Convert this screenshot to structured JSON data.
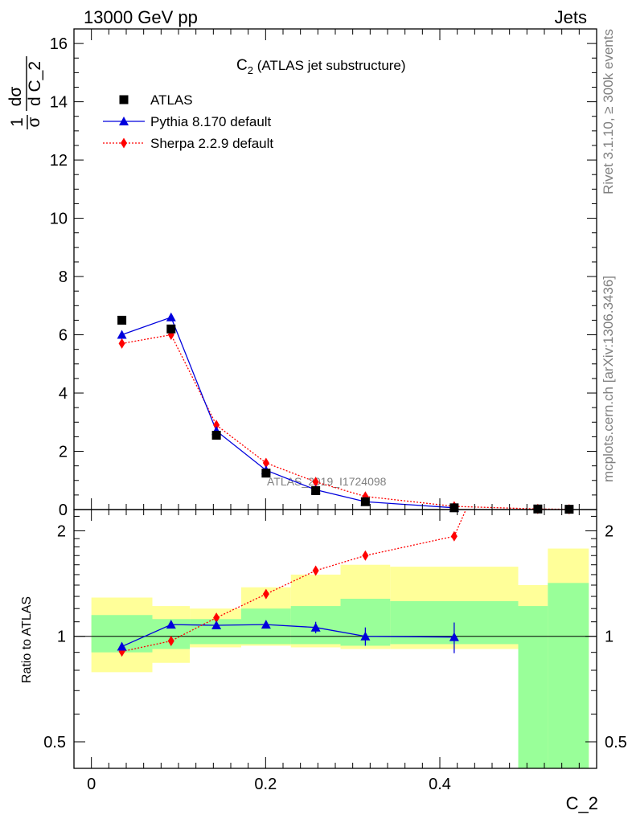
{
  "header": {
    "left": "13000 GeV pp",
    "right": "Jets"
  },
  "side_text": {
    "rivet": "Rivet 3.1.10, ≥ 300k events",
    "mcplots": "mcplots.cern.ch [arXiv:1306.3436]"
  },
  "chart_data": [
    {
      "type": "scatter",
      "panel": "main",
      "title_main": "C",
      "title_sub": "2",
      "title_rest": " (ATLAS jet substructure)",
      "ylabel_parts": {
        "one": "1",
        "sigma": "σ",
        "d": "d",
        "dsigma": "dσ",
        "dvar": "d C_2"
      },
      "watermark": "ATLAS_2019_I1724098",
      "xlim": [
        -0.02,
        0.58
      ],
      "ylim": [
        0,
        16.5
      ],
      "yticks": [
        0,
        2,
        4,
        6,
        8,
        10,
        12,
        14,
        16
      ],
      "ytick_labels": [
        "0",
        "2",
        "4",
        "6",
        "8",
        "10",
        "12",
        "14",
        "16"
      ],
      "legend": {
        "position": "top-left",
        "entries": [
          "ATLAS",
          "Pythia 8.170 default",
          "Sherpa 2.2.9 default"
        ]
      },
      "series": [
        {
          "name": "ATLAS",
          "marker": "square",
          "color": "#000000",
          "x": [
            0.035,
            0.0915,
            0.1435,
            0.2005,
            0.2575,
            0.3145,
            0.4165,
            0.5125,
            0.5485
          ],
          "y": [
            6.5,
            6.2,
            2.55,
            1.25,
            0.65,
            0.27,
            0.06,
            0.02,
            0.01
          ]
        },
        {
          "name": "Pythia 8.170 default",
          "marker": "triangle",
          "color": "#0000dd",
          "line": "solid",
          "x": [
            0.035,
            0.0915,
            0.1435,
            0.2005,
            0.2575,
            0.3145,
            0.4165
          ],
          "y": [
            6.0,
            6.6,
            2.7,
            1.35,
            0.68,
            0.27,
            0.06
          ]
        },
        {
          "name": "Sherpa 2.2.9 default",
          "marker": "diamond",
          "color": "#ff0000",
          "line": "dotted",
          "x": [
            0.035,
            0.0915,
            0.1435,
            0.2005,
            0.2575,
            0.3145,
            0.4165,
            0.5125,
            0.5485
          ],
          "y": [
            5.7,
            6.0,
            2.9,
            1.6,
            0.95,
            0.45,
            0.11,
            0.02,
            0.01
          ]
        }
      ]
    },
    {
      "type": "scatter",
      "panel": "ratio",
      "ylabel": "Ratio to ATLAS",
      "xlabel": "C_2",
      "xlim": [
        -0.02,
        0.58
      ],
      "ylim": [
        0.42,
        2.3
      ],
      "log_y": true,
      "xticks": [
        0,
        0.2,
        0.4
      ],
      "xtick_labels": [
        "0",
        "0.2",
        "0.4"
      ],
      "yticks": [
        0.5,
        1,
        2
      ],
      "ytick_labels": [
        "0.5",
        "1",
        "2"
      ],
      "bands": {
        "edges": [
          0,
          0.07,
          0.113,
          0.172,
          0.229,
          0.286,
          0.343,
          0.49,
          0.524,
          0.571
        ],
        "yellow_lo": [
          0.79,
          0.84,
          0.93,
          0.94,
          0.93,
          0.92,
          0.92,
          0.42,
          0.42
        ],
        "yellow_hi": [
          1.29,
          1.22,
          1.2,
          1.38,
          1.5,
          1.6,
          1.58,
          1.4,
          1.78
        ],
        "green_lo": [
          0.9,
          0.92,
          0.95,
          0.95,
          0.95,
          0.94,
          0.95,
          0.42,
          0.42
        ],
        "green_hi": [
          1.15,
          1.12,
          1.12,
          1.2,
          1.22,
          1.28,
          1.26,
          1.22,
          1.42
        ]
      },
      "series": [
        {
          "name": "Pythia 8.170 default",
          "marker": "triangle",
          "color": "#0000dd",
          "line": "solid",
          "x": [
            0.035,
            0.0915,
            0.1435,
            0.2005,
            0.2575,
            0.3145,
            0.4165
          ],
          "y": [
            0.935,
            1.08,
            1.075,
            1.08,
            1.06,
            1.0,
            0.995
          ],
          "err": [
            0.0,
            0.0,
            0.015,
            0.025,
            0.04,
            0.06,
            0.1
          ]
        },
        {
          "name": "Sherpa 2.2.9 default",
          "marker": "diamond",
          "color": "#ff0000",
          "line": "dotted",
          "x": [
            0.035,
            0.0915,
            0.1435,
            0.2005,
            0.2575,
            0.3145,
            0.4165
          ],
          "y": [
            0.905,
            0.97,
            1.13,
            1.32,
            1.54,
            1.7,
            1.93
          ],
          "trail_x": 0.43,
          "trail_y": 2.3
        }
      ]
    }
  ]
}
